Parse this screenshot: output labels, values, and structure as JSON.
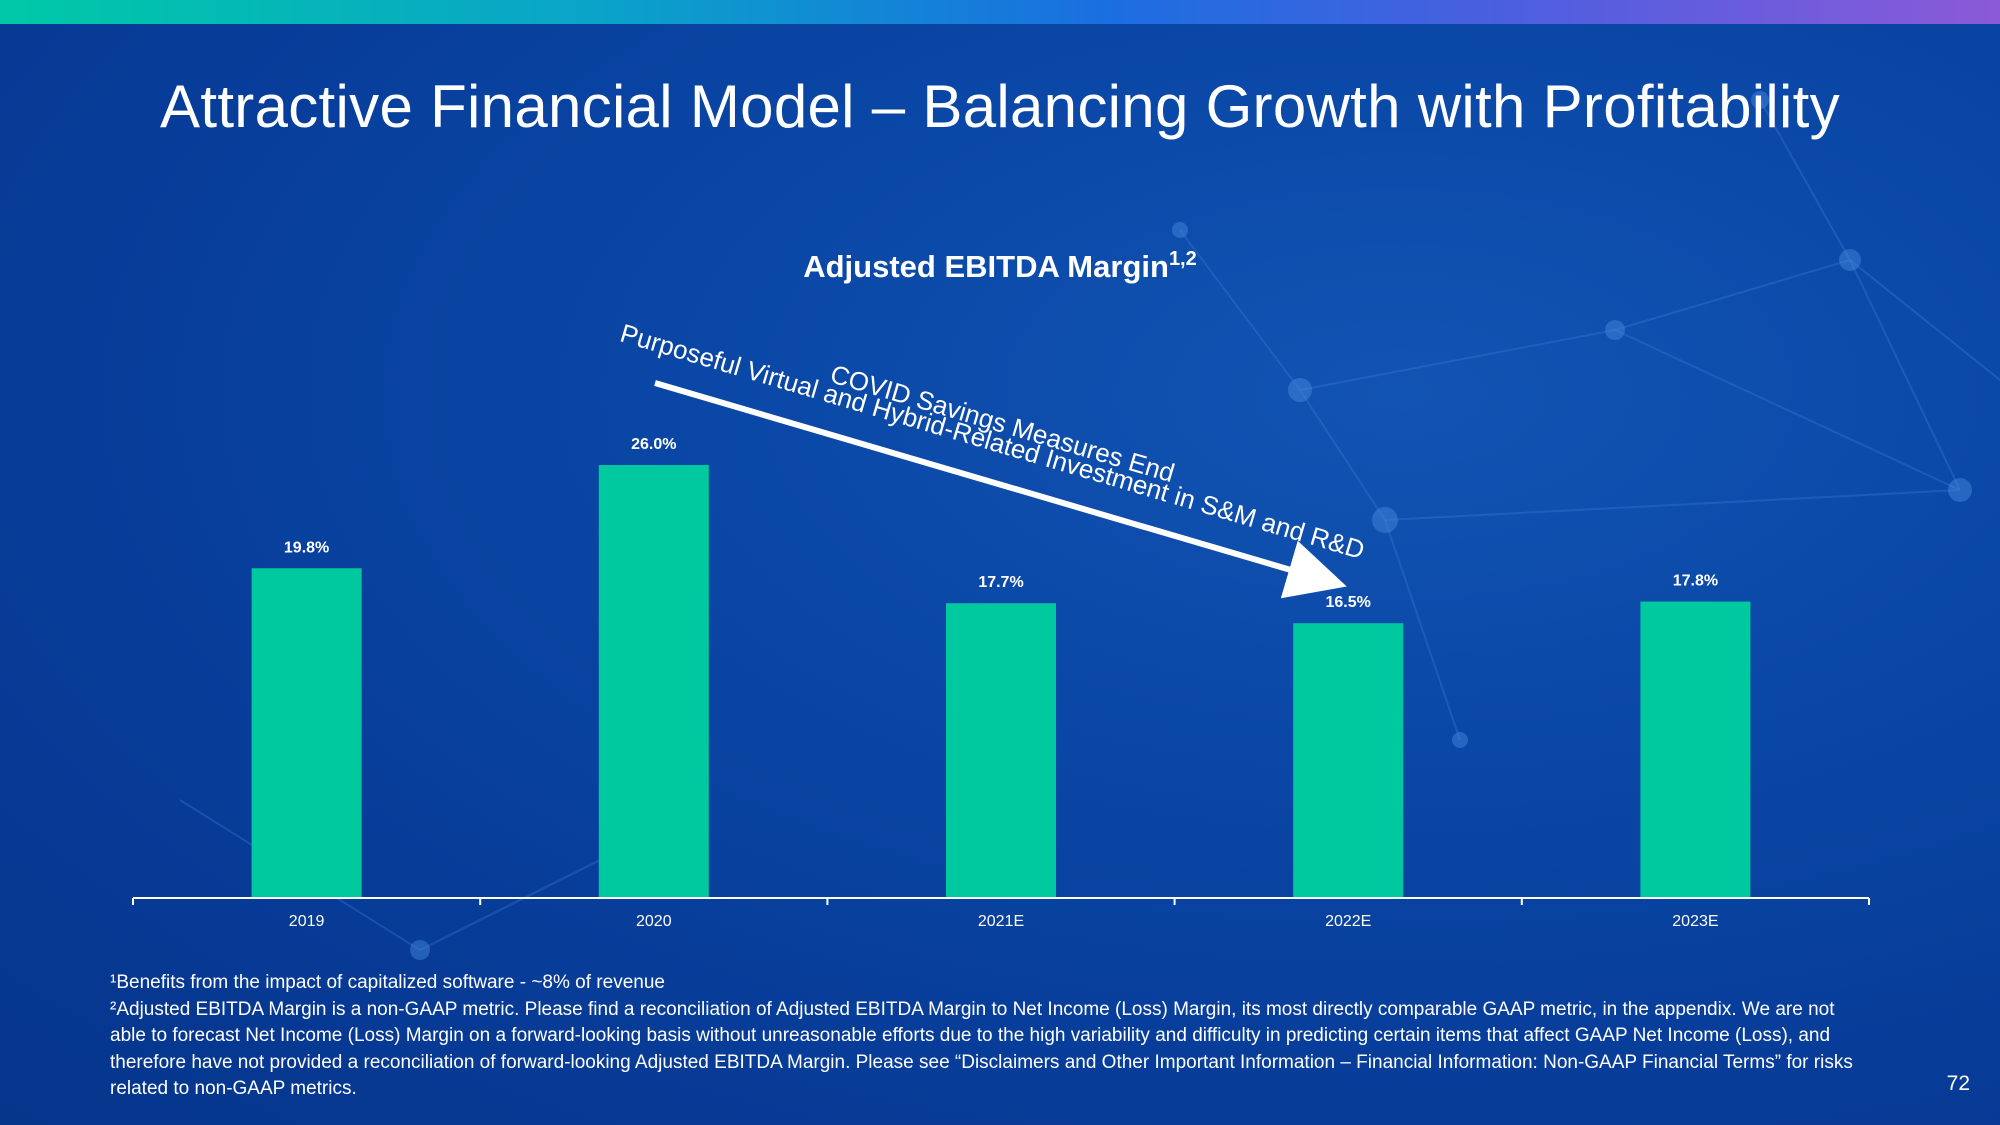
{
  "slide": {
    "title": "Attractive Financial Model – Balancing Growth with Profitability",
    "page_number": "72"
  },
  "chart_data": {
    "type": "bar",
    "title": "Adjusted EBITDA Margin",
    "title_superscript": "1,2",
    "categories": [
      "2019",
      "2020",
      "2021E",
      "2022E",
      "2023E"
    ],
    "values": [
      19.8,
      26.0,
      17.7,
      16.5,
      17.8
    ],
    "data_labels": [
      "19.8%",
      "26.0%",
      "17.7%",
      "16.5%",
      "17.8%"
    ],
    "xlabel": "",
    "ylabel": "",
    "ylim": [
      0,
      26.0
    ],
    "grid": false,
    "bar_color": "#00c9a0",
    "annotations": [
      "COVID Savings Measures End",
      "Purposeful Virtual and Hybrid-Related Investment in S&M and R&D"
    ]
  },
  "footnotes": {
    "note1": "¹Benefits from the impact of capitalized software - ~8% of revenue",
    "note2": "²Adjusted EBITDA Margin is a non-GAAP metric. Please find a reconciliation of Adjusted EBITDA Margin to Net Income (Loss) Margin, its most directly comparable GAAP metric, in the appendix.  We are not able to forecast Net Income (Loss) Margin on a forward-looking basis without unreasonable efforts due to the high variability and difficulty in predicting certain items that affect GAAP Net Income (Loss), and therefore have not provided a reconciliation of forward-looking Adjusted EBITDA Margin.  Please see “Disclaimers and Other Important Information – Financial Information:  Non-GAAP Financial Terms” for risks related to non-GAAP metrics."
  }
}
